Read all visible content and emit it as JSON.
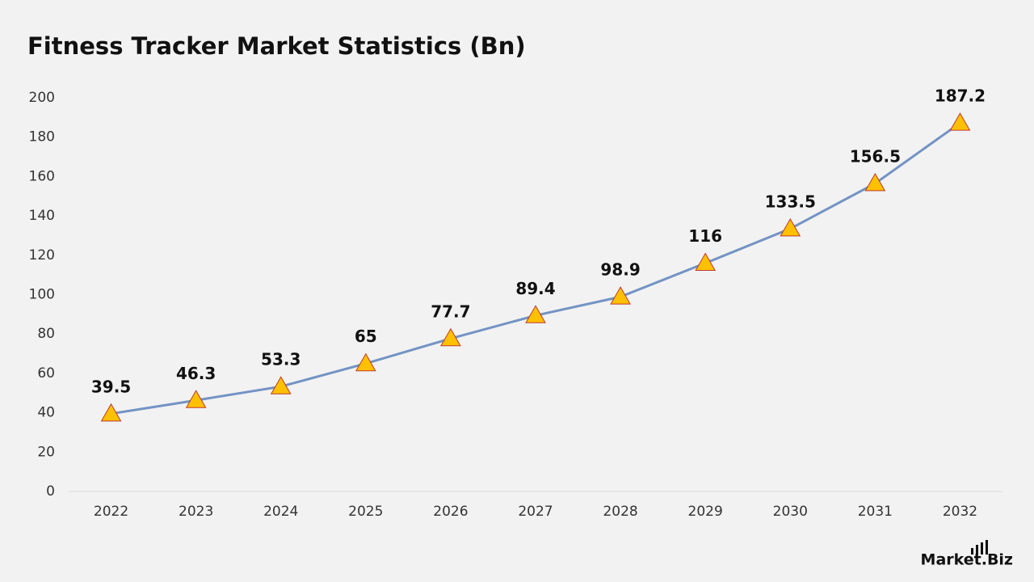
{
  "chart_data": {
    "type": "line",
    "title": "Fitness Tracker Market Statistics (Bn)",
    "categories": [
      "2022",
      "2023",
      "2024",
      "2025",
      "2026",
      "2027",
      "2028",
      "2029",
      "2030",
      "2031",
      "2032"
    ],
    "series": [
      {
        "color": "#7393c4",
        "marker_color": "#ffc000",
        "values": [
          39.5,
          46.3,
          53.3,
          65,
          77.7,
          89.4,
          98.9,
          116,
          133.5,
          156.5,
          187.2
        ]
      }
    ],
    "ylim": [
      0,
      200
    ],
    "yticks": [
      0,
      20,
      40,
      60,
      80,
      100,
      120,
      140,
      160,
      180,
      200
    ],
    "grid": false,
    "data_labels": true
  },
  "brand": "Market.Biz"
}
